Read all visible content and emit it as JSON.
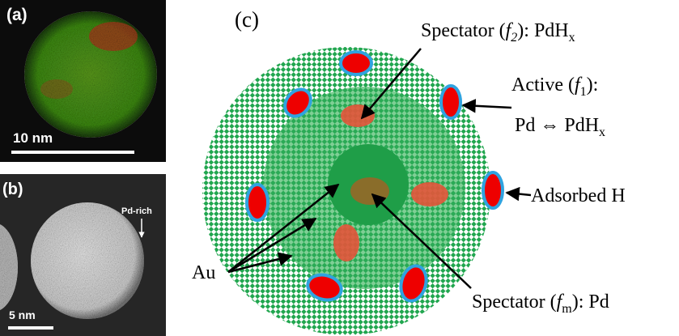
{
  "panels": {
    "a": {
      "label": "(a)",
      "scale_bar": "10 nm"
    },
    "b": {
      "label": "(b)",
      "annotation": "Pd-rich",
      "scale_bar": "5 nm"
    },
    "c": {
      "label": "(c)",
      "annotations": [
        [
          "Spectator (",
          "f",
          "2",
          "): PdH",
          "x"
        ],
        [
          "Active (",
          "f",
          "1",
          "):"
        ],
        [
          "Pd ⇔ PdH",
          "x"
        ],
        [
          "Adsorbed H"
        ],
        [
          "Au"
        ],
        [
          "Spectator (",
          "f",
          "m",
          "): Pd"
        ]
      ]
    }
  }
}
